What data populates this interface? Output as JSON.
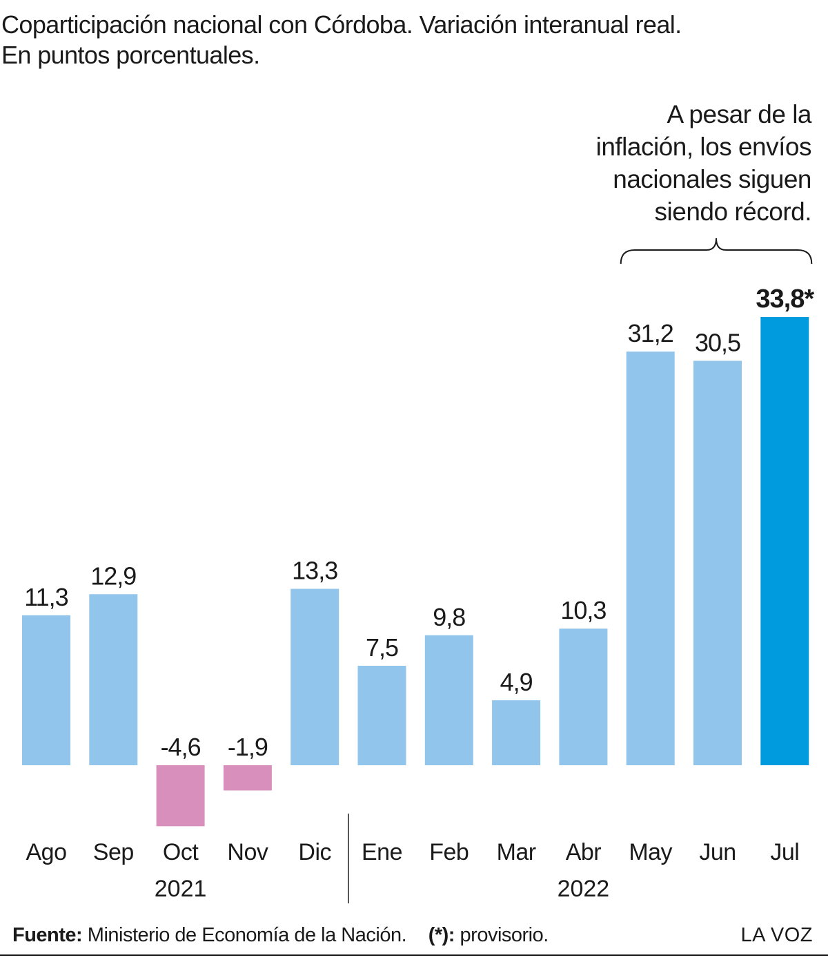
{
  "title_lines": [
    "Coparticipación nacional con Córdoba. Variación interanual real.",
    "En puntos porcentuales."
  ],
  "annotation_lines": [
    "A pesar de la",
    "inflación, los envíos",
    "nacionales siguen",
    "siendo récord."
  ],
  "footer": {
    "source_label": "Fuente:",
    "source_text": "Ministerio de Economía de la Nación.",
    "note_label": "(*):",
    "note_text": "provisorio.",
    "brand": "LA VOZ"
  },
  "colors": {
    "positive": "#92c5eb",
    "negative": "#d98fbb",
    "highlight": "#009ade",
    "text": "#1a1a1a"
  },
  "chart_data": {
    "type": "bar",
    "title": "Coparticipación nacional con Córdoba. Variación interanual real. En puntos porcentuales.",
    "categories": [
      "Ago",
      "Sep",
      "Oct",
      "Nov",
      "Dic",
      "Ene",
      "Feb",
      "Mar",
      "Abr",
      "May",
      "Jun",
      "Jul"
    ],
    "values": [
      11.3,
      12.9,
      -4.6,
      -1.9,
      13.3,
      7.5,
      9.8,
      4.9,
      10.3,
      31.2,
      30.5,
      33.8
    ],
    "value_labels": [
      "11,3",
      "12,9",
      "-4,6",
      "-1,9",
      "13,3",
      "7,5",
      "9,8",
      "4,9",
      "10,3",
      "31,2",
      "30,5",
      "33,8*"
    ],
    "highlighted_category": "Jul",
    "year_groups": [
      {
        "label": "2021",
        "from": "Ago",
        "to": "Dic"
      },
      {
        "label": "2022",
        "from": "Ene",
        "to": "Jul"
      }
    ],
    "bracket": {
      "from": "May",
      "to": "Jul"
    },
    "xlabel": "",
    "ylabel": "",
    "ylim": [
      -5,
      35
    ],
    "grid": false,
    "legend": "none"
  }
}
